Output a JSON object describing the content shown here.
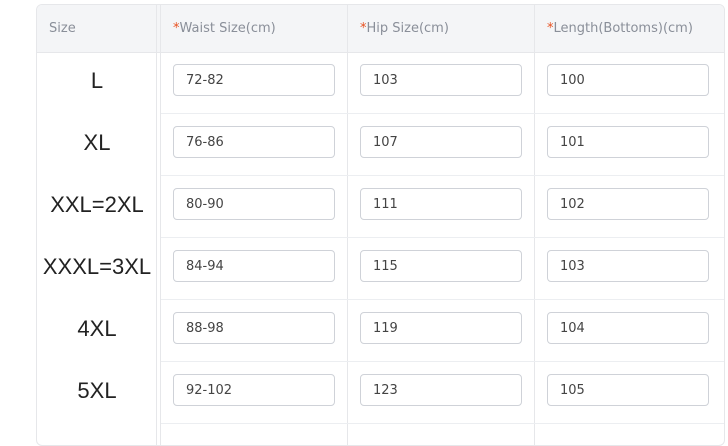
{
  "headers": {
    "size": "Size",
    "waist": "Waist Size(cm)",
    "hip": "Hip Size(cm)",
    "length": "Length(Bottoms)(cm)",
    "required_mark": "*"
  },
  "accent_required": "#e8501f",
  "rows": [
    {
      "size": "L",
      "waist": "72-82",
      "hip": "103",
      "length": "100"
    },
    {
      "size": "XL",
      "waist": "76-86",
      "hip": "107",
      "length": "101"
    },
    {
      "size": "XXL=2XL",
      "waist": "80-90",
      "hip": "111",
      "length": "102"
    },
    {
      "size": "XXXL=3XL",
      "waist": "84-94",
      "hip": "115",
      "length": "103"
    },
    {
      "size": "4XL",
      "waist": "88-98",
      "hip": "119",
      "length": "104"
    },
    {
      "size": "5XL",
      "waist": "92-102",
      "hip": "123",
      "length": "105"
    }
  ]
}
